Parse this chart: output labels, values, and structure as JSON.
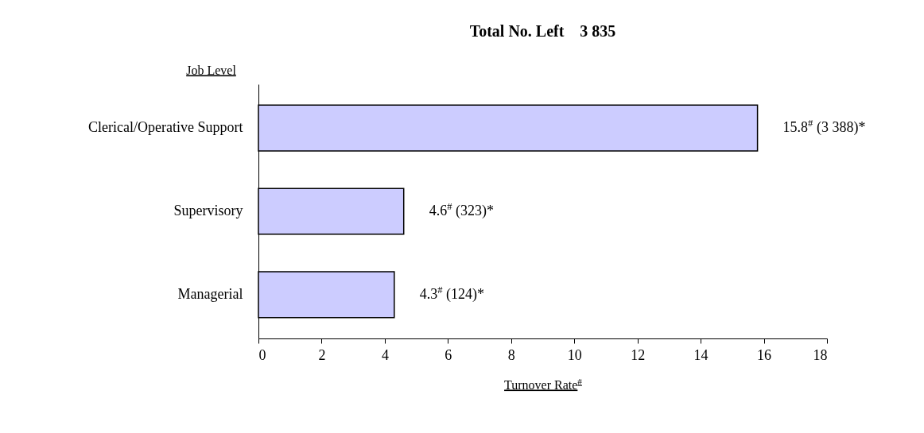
{
  "chart_data": {
    "type": "bar",
    "orientation": "horizontal",
    "title": "Total No. Left    3 835",
    "xlabel": "Turnover Rate$^{#}$",
    "ylabel": "Job Level",
    "categories": [
      "Clerical/Operative Support",
      "Supervisory",
      "Managerial"
    ],
    "values": [
      15.8,
      4.6,
      4.3
    ],
    "value_labels": [
      "15.8$^{#}$ (3 388)*",
      "4.6$^{#}$ (323)*",
      "4.3$^{#}$ (124)*"
    ],
    "color": "#ccccff",
    "xlim": [
      0,
      18
    ],
    "xticks": [
      0,
      2,
      4,
      6,
      8,
      10,
      12,
      14,
      16,
      18
    ],
    "grid": false
  }
}
